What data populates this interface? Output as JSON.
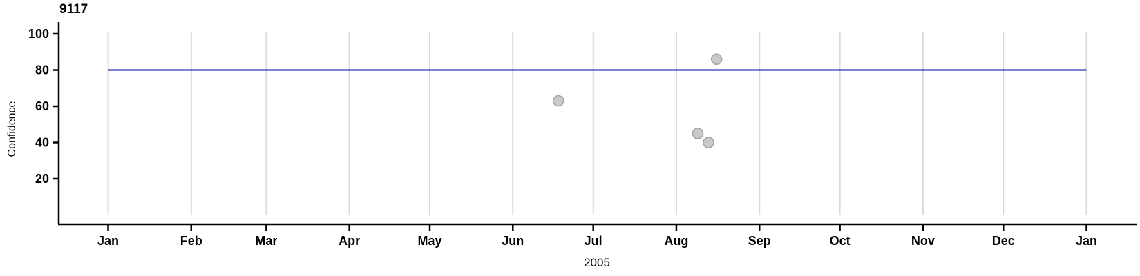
{
  "chart": {
    "title": "9117",
    "ylabel": "Confidence",
    "xlabel": "2005"
  },
  "chart_data": {
    "type": "scatter",
    "title": "9117",
    "xlabel": "2005",
    "ylabel": "Confidence",
    "x_axis": {
      "start": "2005-01-01",
      "end": "2006-01-01",
      "tick_labels": [
        "Jan",
        "Feb",
        "Mar",
        "Apr",
        "May",
        "Jun",
        "Jul",
        "Aug",
        "Sep",
        "Oct",
        "Nov",
        "Dec",
        "Jan"
      ]
    },
    "y_axis": {
      "ticks": [
        20,
        40,
        60,
        80,
        100
      ],
      "range": [
        0,
        105
      ]
    },
    "reference_line": {
      "value": 80,
      "color": "#0000B4"
    },
    "points": [
      {
        "date": "2005-06-18",
        "value": 63
      },
      {
        "date": "2005-08-09",
        "value": 45
      },
      {
        "date": "2005-08-13",
        "value": 40
      },
      {
        "date": "2005-08-16",
        "value": 86
      }
    ],
    "point_style": {
      "fill": "#C9C9C9",
      "stroke": "#A3A3A3"
    },
    "colors": {
      "gridline": "#D9D9D9",
      "axis": "#000000",
      "text": "#000000"
    },
    "grid": "vertical-months-only",
    "legend": "none"
  }
}
